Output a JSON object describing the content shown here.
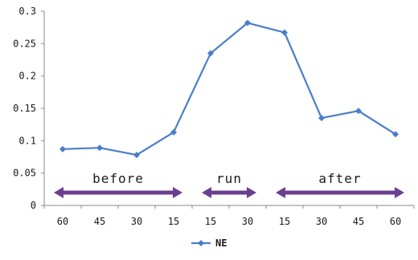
{
  "chart_data": {
    "type": "line",
    "categories": [
      "60",
      "45",
      "30",
      "15",
      "15",
      "30",
      "15",
      "30",
      "45",
      "60"
    ],
    "series": [
      {
        "name": "NE",
        "values": [
          0.087,
          0.089,
          0.078,
          0.113,
          0.235,
          0.282,
          0.267,
          0.135,
          0.146,
          0.11
        ],
        "color": "#4a7ec9"
      }
    ],
    "ylim": [
      0,
      0.3
    ],
    "y_ticks": [
      "0",
      "0.05",
      "0.1",
      "0.15",
      "0.2",
      "0.25",
      "0.3"
    ],
    "grid": false,
    "legend": "bottom",
    "phases": [
      {
        "label": "before",
        "from_index": 0,
        "to_index": 3
      },
      {
        "label": "run",
        "from_index": 4,
        "to_index": 5
      },
      {
        "label": "after",
        "from_index": 6,
        "to_index": 9
      }
    ],
    "phase_arrow_color": "#6b3f8f"
  }
}
